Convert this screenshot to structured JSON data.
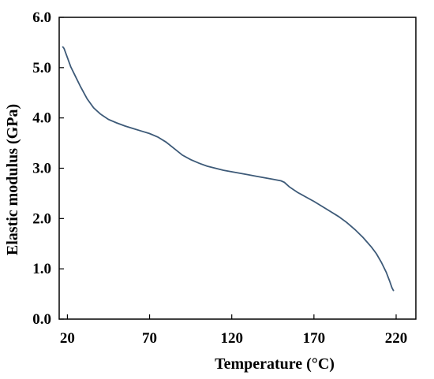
{
  "chart_data": {
    "type": "line",
    "title": "",
    "xlabel": "Temperature (°C)",
    "ylabel": "Elastic modulus (GPa)",
    "xlim": [
      15,
      232
    ],
    "ylim": [
      0,
      6
    ],
    "x_ticks": [
      20,
      70,
      120,
      170,
      220
    ],
    "x_tick_labels": [
      "20",
      "70",
      "120",
      "170",
      "220"
    ],
    "y_ticks": [
      0,
      1,
      2,
      3,
      4,
      5,
      6
    ],
    "y_tick_labels": [
      "0.0",
      "1.0",
      "2.0",
      "3.0",
      "4.0",
      "5.0",
      "6.0"
    ],
    "grid": false,
    "legend": "none",
    "line_color": "#3d5a78",
    "series": [
      {
        "x": [
          17,
          18,
          20,
          22,
          25,
          28,
          32,
          36,
          40,
          45,
          50,
          55,
          60,
          65,
          70,
          75,
          80,
          85,
          90,
          95,
          100,
          105,
          110,
          115,
          120,
          125,
          130,
          135,
          140,
          145,
          150,
          152,
          155,
          160,
          165,
          170,
          175,
          180,
          185,
          190,
          195,
          200,
          205,
          208,
          211,
          214,
          216,
          217.5,
          218.5
        ],
        "y": [
          5.42,
          5.38,
          5.2,
          5.02,
          4.82,
          4.62,
          4.38,
          4.2,
          4.08,
          3.97,
          3.9,
          3.84,
          3.79,
          3.74,
          3.69,
          3.62,
          3.52,
          3.39,
          3.26,
          3.17,
          3.1,
          3.04,
          3.0,
          2.96,
          2.93,
          2.9,
          2.87,
          2.84,
          2.81,
          2.78,
          2.75,
          2.72,
          2.63,
          2.52,
          2.43,
          2.34,
          2.24,
          2.14,
          2.04,
          1.92,
          1.78,
          1.62,
          1.43,
          1.3,
          1.13,
          0.93,
          0.76,
          0.62,
          0.56
        ]
      }
    ]
  }
}
